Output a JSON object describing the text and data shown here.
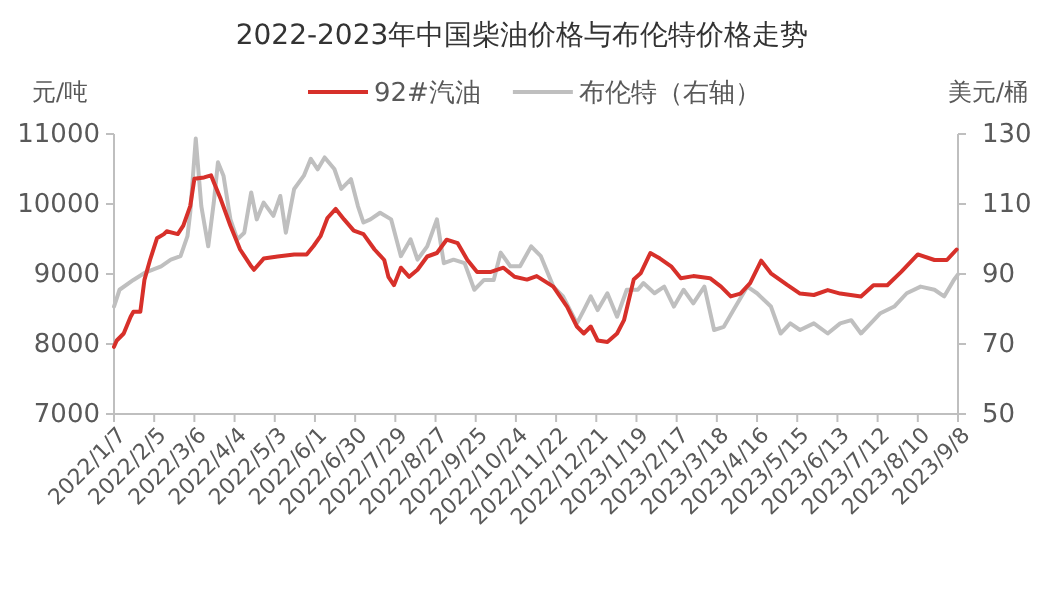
{
  "chart_data": {
    "type": "line",
    "title": "2022-2023年中国柴油价格与布伦特价格走势",
    "ylabel": "元/吨",
    "y2label": "美元/桶",
    "legend": "top",
    "grid": false,
    "marker": "none",
    "line_style": "solid",
    "ylim": [
      7000,
      11000
    ],
    "yticks": [
      7000,
      8000,
      9000,
      10000,
      11000
    ],
    "y2lim": [
      50,
      130
    ],
    "y2ticks": [
      50,
      70,
      90,
      110,
      130
    ],
    "xlim": [
      "2022-01-07",
      "2023-09-08"
    ],
    "xticks": [
      {
        "value": "2022-01-07",
        "label": "2022/1/7"
      },
      {
        "value": "2022-02-05",
        "label": "2022/2/5"
      },
      {
        "value": "2022-03-06",
        "label": "2022/3/6"
      },
      {
        "value": "2022-04-04",
        "label": "2022/4/4"
      },
      {
        "value": "2022-05-03",
        "label": "2022/5/3"
      },
      {
        "value": "2022-06-01",
        "label": "2022/6/1"
      },
      {
        "value": "2022-06-30",
        "label": "2022/6/30"
      },
      {
        "value": "2022-07-29",
        "label": "2022/7/29"
      },
      {
        "value": "2022-08-27",
        "label": "2022/8/27"
      },
      {
        "value": "2022-09-25",
        "label": "2022/9/25"
      },
      {
        "value": "2022-10-24",
        "label": "2022/10/24"
      },
      {
        "value": "2022-11-22",
        "label": "2022/11/22"
      },
      {
        "value": "2022-12-21",
        "label": "2022/12/21"
      },
      {
        "value": "2023-01-19",
        "label": "2023/1/19"
      },
      {
        "value": "2023-02-17",
        "label": "2023/2/17"
      },
      {
        "value": "2023-03-18",
        "label": "2023/3/18"
      },
      {
        "value": "2023-04-16",
        "label": "2023/4/16"
      },
      {
        "value": "2023-05-15",
        "label": "2023/5/15"
      },
      {
        "value": "2023-06-13",
        "label": "2023/6/13"
      },
      {
        "value": "2023-07-12",
        "label": "2023/7/12"
      },
      {
        "value": "2023-08-10",
        "label": "2023/8/10"
      },
      {
        "value": "2023-09-08",
        "label": "2023/9/8"
      }
    ],
    "series": [
      {
        "name": "92#汽油",
        "color": "#d7302a",
        "x": [
          "2022-01-07",
          "2022-01-09",
          "2022-01-14",
          "2022-01-19",
          "2022-01-21",
          "2022-01-26",
          "2022-01-29",
          "2022-02-02",
          "2022-02-07",
          "2022-02-12",
          "2022-02-14",
          "2022-02-22",
          "2022-02-26",
          "2022-03-03",
          "2022-03-06",
          "2022-03-13",
          "2022-03-18",
          "2022-03-20",
          "2022-03-25",
          "2022-04-01",
          "2022-04-08",
          "2022-04-16",
          "2022-04-18",
          "2022-04-25",
          "2022-05-05",
          "2022-05-17",
          "2022-05-26",
          "2022-05-31",
          "2022-06-05",
          "2022-06-10",
          "2022-06-16",
          "2022-06-22",
          "2022-06-29",
          "2022-07-06",
          "2022-07-14",
          "2022-07-21",
          "2022-07-24",
          "2022-07-28",
          "2022-08-02",
          "2022-08-08",
          "2022-08-14",
          "2022-08-21",
          "2022-08-28",
          "2022-09-04",
          "2022-09-12",
          "2022-09-19",
          "2022-09-26",
          "2022-10-06",
          "2022-10-15",
          "2022-10-23",
          "2022-11-01",
          "2022-11-08",
          "2022-11-20",
          "2022-11-30",
          "2022-12-07",
          "2022-12-12",
          "2022-12-17",
          "2022-12-22",
          "2022-12-29",
          "2023-01-05",
          "2023-01-10",
          "2023-01-17",
          "2023-01-22",
          "2023-01-29",
          "2023-02-05",
          "2023-02-13",
          "2023-02-20",
          "2023-03-01",
          "2023-03-13",
          "2023-03-21",
          "2023-03-28",
          "2023-04-04",
          "2023-04-11",
          "2023-04-19",
          "2023-04-26",
          "2023-05-08",
          "2023-05-17",
          "2023-05-27",
          "2023-06-06",
          "2023-06-15",
          "2023-06-30",
          "2023-07-09",
          "2023-07-19",
          "2023-07-29",
          "2023-08-10",
          "2023-08-22",
          "2023-08-31",
          "2023-09-07"
        ],
        "values": [
          7960,
          8050,
          8150,
          8390,
          8460,
          8460,
          8920,
          9200,
          9510,
          9570,
          9610,
          9570,
          9690,
          9970,
          10360,
          10380,
          10410,
          10310,
          10070,
          9690,
          9350,
          9110,
          9060,
          9220,
          9250,
          9280,
          9280,
          9400,
          9540,
          9800,
          9930,
          9780,
          9620,
          9570,
          9350,
          9200,
          8960,
          8840,
          9090,
          8960,
          9060,
          9250,
          9300,
          9490,
          9440,
          9200,
          9030,
          9030,
          9090,
          8960,
          8920,
          8970,
          8820,
          8530,
          8250,
          8150,
          8250,
          8050,
          8030,
          8150,
          8340,
          8920,
          9010,
          9300,
          9220,
          9110,
          8940,
          8970,
          8940,
          8820,
          8680,
          8720,
          8870,
          9190,
          9010,
          8840,
          8720,
          8700,
          8770,
          8720,
          8680,
          8840,
          8840,
          9030,
          9280,
          9200,
          9200,
          9350
        ]
      },
      {
        "name": "布伦特（右轴）",
        "color": "#bfbfbf",
        "axis": "y2",
        "x": [
          "2022-01-07",
          "2022-01-11",
          "2022-01-21",
          "2022-01-29",
          "2022-02-10",
          "2022-02-17",
          "2022-02-24",
          "2022-03-01",
          "2022-03-03",
          "2022-03-07",
          "2022-03-11",
          "2022-03-16",
          "2022-03-20",
          "2022-03-23",
          "2022-03-27",
          "2022-04-01",
          "2022-04-06",
          "2022-04-11",
          "2022-04-16",
          "2022-04-20",
          "2022-04-25",
          "2022-05-02",
          "2022-05-07",
          "2022-05-11",
          "2022-05-17",
          "2022-05-24",
          "2022-05-29",
          "2022-06-03",
          "2022-06-08",
          "2022-06-15",
          "2022-06-20",
          "2022-06-27",
          "2022-07-02",
          "2022-07-06",
          "2022-07-11",
          "2022-07-18",
          "2022-07-26",
          "2022-08-02",
          "2022-08-09",
          "2022-08-14",
          "2022-08-21",
          "2022-08-28",
          "2022-09-02",
          "2022-09-09",
          "2022-09-17",
          "2022-09-24",
          "2022-10-01",
          "2022-10-08",
          "2022-10-13",
          "2022-10-20",
          "2022-10-27",
          "2022-11-04",
          "2022-11-11",
          "2022-11-20",
          "2022-11-27",
          "2022-12-07",
          "2022-12-12",
          "2022-12-17",
          "2022-12-22",
          "2022-12-29",
          "2023-01-05",
          "2023-01-12",
          "2023-01-20",
          "2023-01-24",
          "2023-02-01",
          "2023-02-08",
          "2023-02-15",
          "2023-02-22",
          "2023-03-01",
          "2023-03-09",
          "2023-03-16",
          "2023-03-23",
          "2023-03-30",
          "2023-04-09",
          "2023-04-16",
          "2023-04-26",
          "2023-05-03",
          "2023-05-10",
          "2023-05-17",
          "2023-05-27",
          "2023-06-06",
          "2023-06-15",
          "2023-06-23",
          "2023-06-30",
          "2023-07-07",
          "2023-07-14",
          "2023-07-24",
          "2023-08-02",
          "2023-08-12",
          "2023-08-22",
          "2023-08-29",
          "2023-09-05",
          "2023-09-08"
        ],
        "values": [
          80.7,
          85.5,
          88.3,
          90.3,
          92.2,
          94.1,
          95.1,
          100.8,
          107.5,
          128.7,
          109.4,
          97.9,
          110.4,
          121.9,
          118.1,
          105.6,
          99.9,
          101.8,
          113.3,
          105.6,
          110.4,
          106.6,
          112.3,
          101.8,
          114.3,
          118.1,
          122.9,
          119.9,
          123.3,
          120,
          114.3,
          117.1,
          109.4,
          104.7,
          105.6,
          107.5,
          105.6,
          95.1,
          99.9,
          94.1,
          97.9,
          105.6,
          93.1,
          94.1,
          93.1,
          85.5,
          88.3,
          88.3,
          96.1,
          92.2,
          92.2,
          97.9,
          95.1,
          86.4,
          83.6,
          75.9,
          79.7,
          83.6,
          79.7,
          84.5,
          77.8,
          85.5,
          85.5,
          87.4,
          84.5,
          86.4,
          80.7,
          85.5,
          81.6,
          86.4,
          74,
          74.9,
          79.7,
          86.4,
          84.5,
          80.7,
          73,
          75.9,
          74,
          75.9,
          73,
          75.9,
          76.8,
          73,
          75.9,
          78.8,
          80.7,
          84.5,
          86.4,
          85.5,
          83.6,
          88.3,
          89.9
        ]
      }
    ]
  }
}
